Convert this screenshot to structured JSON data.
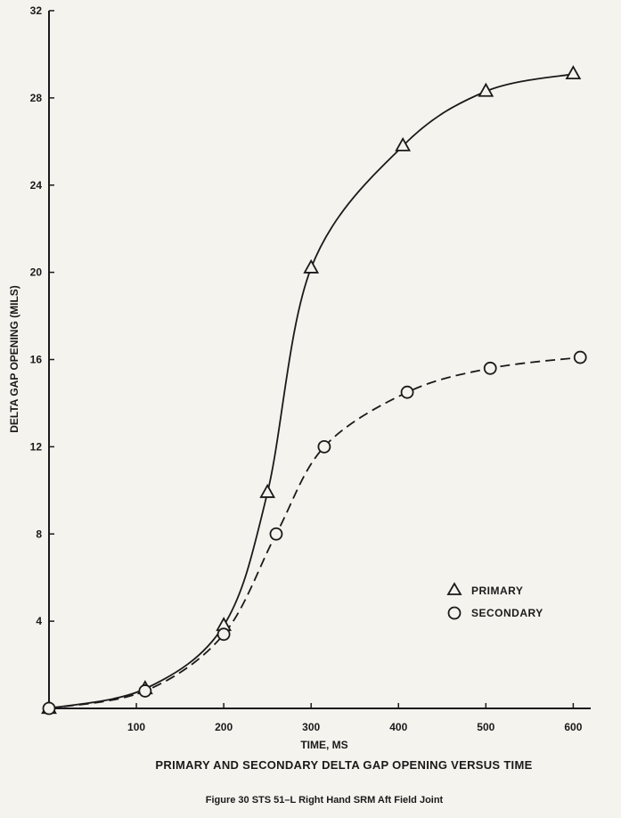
{
  "chart_data": {
    "type": "line",
    "title": "PRIMARY AND SECONDARY DELTA GAP OPENING VERSUS TIME",
    "caption": "Figure 30  STS 51–L Right Hand SRM Aft Field Joint",
    "xlabel": "TIME, MS",
    "ylabel": "DELTA GAP OPENING (MILS)",
    "xlim": [
      0,
      620
    ],
    "ylim": [
      0,
      32
    ],
    "x_ticks": [
      100,
      200,
      300,
      400,
      500,
      600
    ],
    "y_ticks": [
      4,
      8,
      12,
      16,
      20,
      24,
      28,
      32
    ],
    "grid": false,
    "legend_position": "bottom-right",
    "series": [
      {
        "name": "PRIMARY",
        "marker": "triangle",
        "line_style": "solid",
        "x": [
          0,
          110,
          200,
          250,
          300,
          405,
          500,
          600
        ],
        "y": [
          0,
          0.9,
          3.8,
          9.9,
          20.2,
          25.8,
          28.3,
          29.1
        ]
      },
      {
        "name": "SECONDARY",
        "marker": "circle",
        "line_style": "dashed",
        "x": [
          0,
          110,
          200,
          260,
          315,
          410,
          505,
          608
        ],
        "y": [
          0,
          0.8,
          3.4,
          8.0,
          12.0,
          14.5,
          15.6,
          16.1
        ]
      }
    ]
  }
}
